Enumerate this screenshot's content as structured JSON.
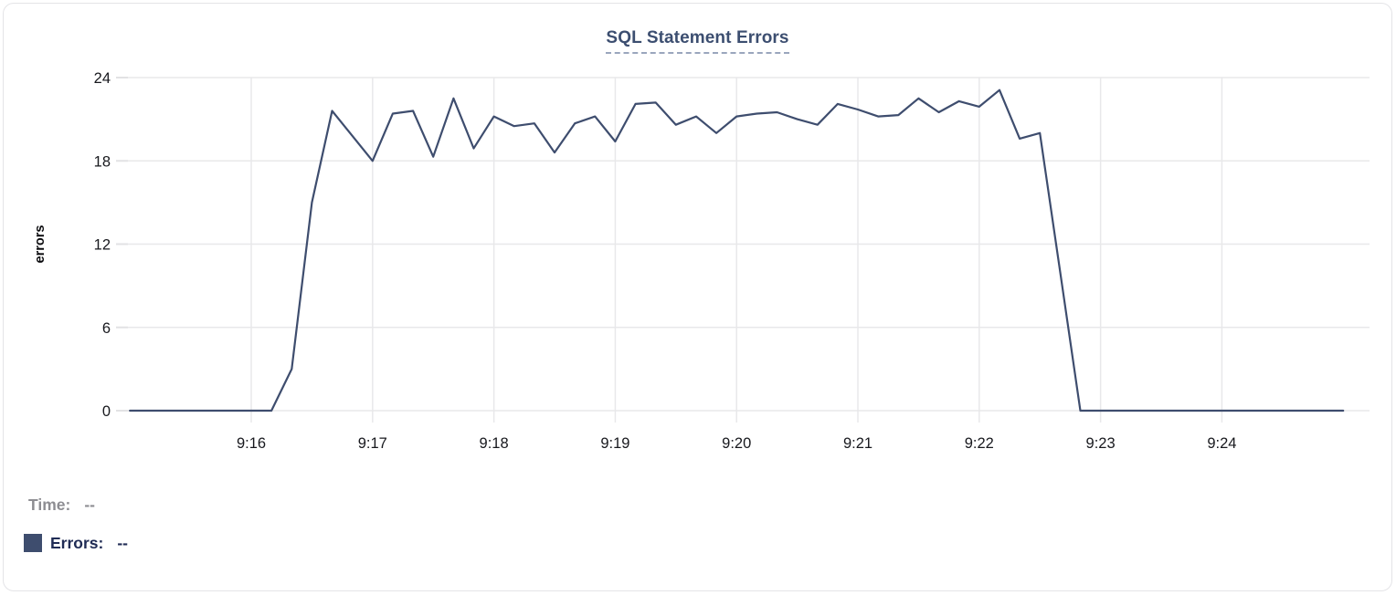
{
  "chart_data": {
    "type": "line",
    "title": "SQL Statement Errors",
    "xlabel": "",
    "ylabel": "errors",
    "ylim": [
      0,
      24
    ],
    "y_ticks": [
      0,
      6,
      12,
      18,
      24
    ],
    "x_ticks": [
      "9:16",
      "9:17",
      "9:18",
      "9:19",
      "9:20",
      "9:21",
      "9:22",
      "9:23",
      "9:24"
    ],
    "x_range": [
      "9:14:59",
      "9:25:13"
    ],
    "grid": true,
    "legend_position": "bottom-left",
    "series": [
      {
        "name": "Errors",
        "color": "#3e4d6e",
        "points": [
          [
            "9:15:00",
            0
          ],
          [
            "9:15:10",
            0
          ],
          [
            "9:15:20",
            0
          ],
          [
            "9:15:30",
            0
          ],
          [
            "9:15:40",
            0
          ],
          [
            "9:15:50",
            0
          ],
          [
            "9:16:00",
            0
          ],
          [
            "9:16:10",
            0
          ],
          [
            "9:16:20",
            3
          ],
          [
            "9:16:30",
            15
          ],
          [
            "9:16:40",
            21.6
          ],
          [
            "9:16:50",
            19.8
          ],
          [
            "9:17:00",
            18
          ],
          [
            "9:17:10",
            21.4
          ],
          [
            "9:17:20",
            21.6
          ],
          [
            "9:17:30",
            18.3
          ],
          [
            "9:17:40",
            22.5
          ],
          [
            "9:17:50",
            18.9
          ],
          [
            "9:18:00",
            21.2
          ],
          [
            "9:18:10",
            20.5
          ],
          [
            "9:18:20",
            20.7
          ],
          [
            "9:18:30",
            18.6
          ],
          [
            "9:18:40",
            20.7
          ],
          [
            "9:18:50",
            21.2
          ],
          [
            "9:19:00",
            19.4
          ],
          [
            "9:19:10",
            22.1
          ],
          [
            "9:19:20",
            22.2
          ],
          [
            "9:19:30",
            20.6
          ],
          [
            "9:19:40",
            21.2
          ],
          [
            "9:19:50",
            20.0
          ],
          [
            "9:20:00",
            21.2
          ],
          [
            "9:20:10",
            21.4
          ],
          [
            "9:20:20",
            21.5
          ],
          [
            "9:20:30",
            21.0
          ],
          [
            "9:20:40",
            20.6
          ],
          [
            "9:20:50",
            22.1
          ],
          [
            "9:21:00",
            21.7
          ],
          [
            "9:21:10",
            21.2
          ],
          [
            "9:21:20",
            21.3
          ],
          [
            "9:21:30",
            22.5
          ],
          [
            "9:21:40",
            21.5
          ],
          [
            "9:21:50",
            22.3
          ],
          [
            "9:22:00",
            21.9
          ],
          [
            "9:22:10",
            23.1
          ],
          [
            "9:22:20",
            19.6
          ],
          [
            "9:22:30",
            20.0
          ],
          [
            "9:22:40",
            10
          ],
          [
            "9:22:50",
            0
          ],
          [
            "9:23:00",
            0
          ],
          [
            "9:23:10",
            0
          ],
          [
            "9:23:20",
            0
          ],
          [
            "9:23:30",
            0
          ],
          [
            "9:23:40",
            0
          ],
          [
            "9:23:50",
            0
          ],
          [
            "9:24:00",
            0
          ],
          [
            "9:24:10",
            0
          ],
          [
            "9:24:20",
            0
          ],
          [
            "9:24:30",
            0
          ],
          [
            "9:24:40",
            0
          ],
          [
            "9:24:50",
            0
          ],
          [
            "9:25:00",
            0
          ]
        ]
      }
    ]
  },
  "tooltip_readout": {
    "time_label": "Time:",
    "time_value": "--",
    "errors_label": "Errors:",
    "errors_value": "--"
  },
  "colors": {
    "line": "#3e4d6e",
    "swatch": "#3e4d6e",
    "grid": "#e8e8ea",
    "tick": "#e2e2e4",
    "title": "#3c4e70",
    "title_dash": "#9aa6bd",
    "time_text": "#8d8d92",
    "errors_text": "#202c55",
    "card_border": "#e4e4e7"
  }
}
